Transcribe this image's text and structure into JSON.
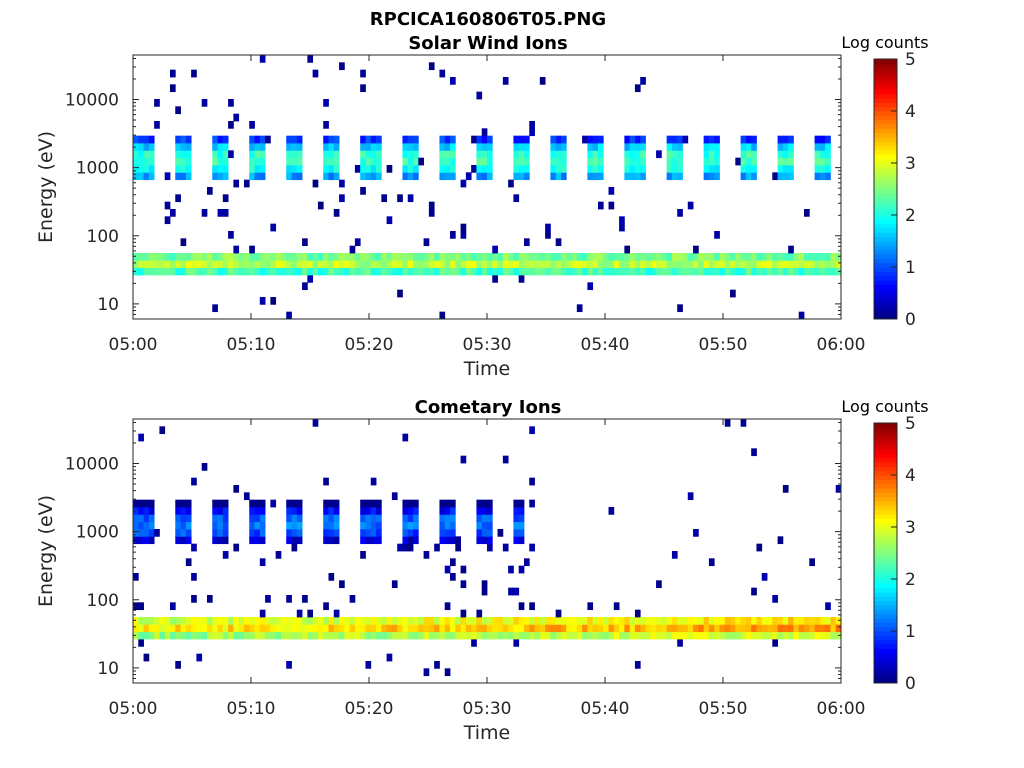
{
  "figure_title": "RPCICA160806T05.PNG",
  "chart_data": [
    {
      "type": "heatmap",
      "title": "Solar Wind Ions",
      "xlabel": "Time",
      "ylabel": "Energy (eV)",
      "x_ticks": [
        "05:00",
        "05:10",
        "05:20",
        "05:30",
        "05:40",
        "05:50",
        "06:00"
      ],
      "x_range_minutes": [
        0,
        60
      ],
      "y_scale": "log",
      "y_ticks": [
        10,
        100,
        1000,
        10000
      ],
      "y_tick_labels": [
        "10",
        "100",
        "1000",
        "10000"
      ],
      "ylim": [
        6,
        45000
      ],
      "colorbar": {
        "label": "Log counts",
        "range": [
          0,
          5
        ],
        "ticks": [
          "0",
          "1",
          "2",
          "3",
          "4",
          "5"
        ],
        "colormap": "jet"
      },
      "scan_period_minutes": 3.2,
      "features": [
        {
          "name": "solar_wind_beam",
          "energy_range_eV": [
            600,
            3300
          ],
          "peak_energy_eV": 1300,
          "peak_log_counts": 2.2,
          "active_minutes": [
            0,
            60
          ]
        },
        {
          "name": "low_energy_band",
          "energy_range_eV": [
            25,
            62
          ],
          "peak_energy_eV": 40,
          "peak_log_counts": 2.8,
          "active_minutes": [
            0,
            60
          ]
        }
      ]
    },
    {
      "type": "heatmap",
      "title": "Cometary Ions",
      "xlabel": "Time",
      "ylabel": "Energy (eV)",
      "x_ticks": [
        "05:00",
        "05:10",
        "05:20",
        "05:30",
        "05:40",
        "05:50",
        "06:00"
      ],
      "x_range_minutes": [
        0,
        60
      ],
      "y_scale": "log",
      "y_ticks": [
        10,
        100,
        1000,
        10000
      ],
      "y_tick_labels": [
        "10",
        "100",
        "1000",
        "10000"
      ],
      "ylim": [
        6,
        45000
      ],
      "colorbar": {
        "label": "Log counts",
        "range": [
          0,
          5
        ],
        "ticks": [
          "0",
          "1",
          "2",
          "3",
          "4",
          "5"
        ],
        "colormap": "jet"
      },
      "scan_period_minutes": 3.2,
      "features": [
        {
          "name": "solar_wind_beam",
          "energy_range_eV": [
            600,
            3300
          ],
          "peak_energy_eV": 1300,
          "peak_log_counts": 1.2,
          "active_minutes": [
            0,
            33
          ]
        },
        {
          "name": "low_energy_band",
          "energy_range_eV": [
            25,
            62
          ],
          "peak_energy_eV": 40,
          "peak_log_counts": 3.2,
          "active_minutes": [
            0,
            60
          ]
        }
      ]
    }
  ]
}
